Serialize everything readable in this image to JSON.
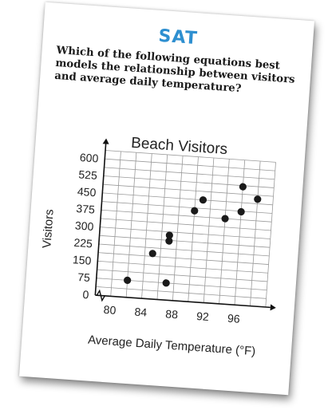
{
  "header": {
    "label": "SAT"
  },
  "question": {
    "text": "Which of the following equations best models the relationship between visitors and average daily temperature?"
  },
  "colors": {
    "accent": "#2e8fd0",
    "point": "#1a1a1a",
    "grid": "#9a9a9a"
  },
  "chart_data": {
    "type": "scatter",
    "title": "Beach Visitors",
    "xlabel": "Average Daily Temperature (°F)",
    "ylabel": "Visitors",
    "x_ticks": [
      80,
      84,
      88,
      92,
      96
    ],
    "y_ticks": [
      0,
      75,
      150,
      225,
      300,
      375,
      450,
      525,
      600
    ],
    "xlim": [
      78,
      100
    ],
    "ylim": [
      0,
      637.5
    ],
    "axis_break": true,
    "grid": true,
    "series": [
      {
        "points": [
          {
            "x": 82,
            "y": 75
          },
          {
            "x": 85,
            "y": 200
          },
          {
            "x": 87,
            "y": 260
          },
          {
            "x": 87,
            "y": 285
          },
          {
            "x": 87,
            "y": 75
          },
          {
            "x": 90,
            "y": 400
          },
          {
            "x": 91,
            "y": 450
          },
          {
            "x": 94,
            "y": 375
          },
          {
            "x": 96,
            "y": 410
          },
          {
            "x": 96,
            "y": 520
          },
          {
            "x": 98,
            "y": 470
          }
        ]
      }
    ]
  }
}
